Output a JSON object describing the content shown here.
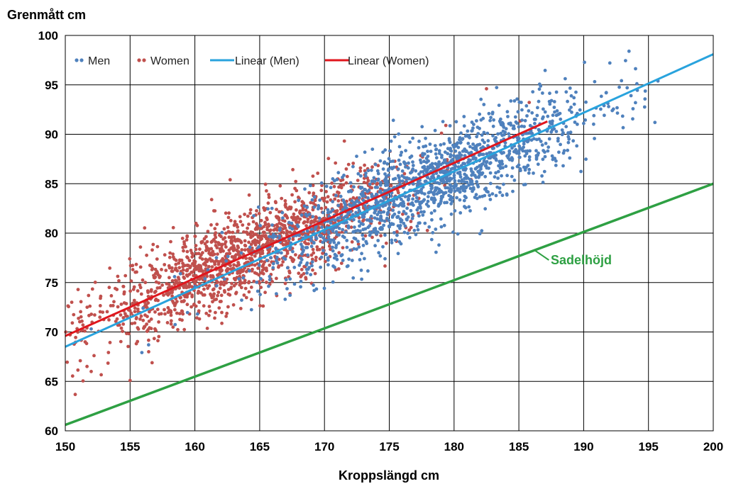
{
  "chart_data": {
    "type": "scatter",
    "title": "",
    "xlabel": "Kroppslängd cm",
    "ylabel": "Grenmått cm",
    "xlim": [
      150,
      200
    ],
    "ylim": [
      60,
      100
    ],
    "xticks": [
      "150",
      "155",
      "160",
      "165",
      "170",
      "175",
      "180",
      "185",
      "190",
      "195",
      "200"
    ],
    "yticks": [
      "60",
      "65",
      "70",
      "75",
      "80",
      "85",
      "90",
      "95",
      "100"
    ],
    "grid": true,
    "legend_position": "top-left",
    "legend": [
      "Men",
      "Women",
      "Linear (Men)",
      "Linear (Women)"
    ],
    "colors": {
      "men": "#4f81bd",
      "women": "#c0504d",
      "linear_men": "#29a3dd",
      "linear_women": "#e0161d",
      "sadelhojd": "#2ea043",
      "annotation": "#2ea043",
      "grid": "#000000"
    },
    "series": [
      {
        "name": "Men",
        "type": "scatter",
        "x_range": [
          150,
          196
        ],
        "y_range": [
          69,
          98.5
        ],
        "sample_points": [
          {
            "x": 152,
            "y": 70.3
          },
          {
            "x": 156,
            "y": 72.4
          },
          {
            "x": 160,
            "y": 74.6
          },
          {
            "x": 165,
            "y": 77.4
          },
          {
            "x": 170,
            "y": 80.1
          },
          {
            "x": 175,
            "y": 82.9
          },
          {
            "x": 180,
            "y": 85.6
          },
          {
            "x": 185,
            "y": 88.3
          },
          {
            "x": 190,
            "y": 91.1
          },
          {
            "x": 193.5,
            "y": 98.4
          },
          {
            "x": 195.5,
            "y": 91.2
          }
        ]
      },
      {
        "name": "Women",
        "type": "scatter",
        "x_range": [
          150,
          188
        ],
        "y_range": [
          65,
          94.5
        ],
        "sample_points": [
          {
            "x": 150.5,
            "y": 73
          },
          {
            "x": 152,
            "y": 66
          },
          {
            "x": 155,
            "y": 65.1
          },
          {
            "x": 158,
            "y": 74.8
          },
          {
            "x": 162,
            "y": 76.5
          },
          {
            "x": 166,
            "y": 79.2
          },
          {
            "x": 170,
            "y": 81.5
          },
          {
            "x": 175,
            "y": 84.3
          },
          {
            "x": 182.5,
            "y": 94.6
          }
        ]
      },
      {
        "name": "Linear (Men)",
        "type": "line",
        "x": [
          150,
          200
        ],
        "y": [
          68.5,
          98.1
        ]
      },
      {
        "name": "Linear (Women)",
        "type": "line",
        "x": [
          150,
          187.2
        ],
        "y": [
          69.6,
          91.3
        ]
      },
      {
        "type": "line",
        "x": [
          150,
          200
        ],
        "y": [
          60.6,
          85.0
        ]
      }
    ],
    "annotations": [
      {
        "text": "Sadelhöjd",
        "x": 186,
        "y": 77.9
      }
    ]
  }
}
